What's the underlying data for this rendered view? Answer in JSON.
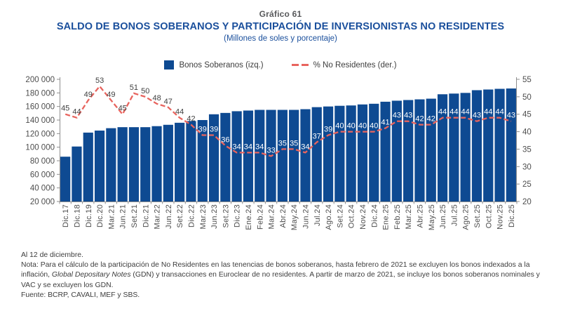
{
  "header": {
    "kicker": "Gráfico 61",
    "title": "SALDO DE BONOS SOBERANOS Y PARTICIPACIÓN DE INVERSIONISTAS NO RESIDENTES",
    "subtitle": "(Millones de soles y porcentaje)"
  },
  "legend": {
    "bars_label": "Bonos Soberanos (izq.)",
    "line_label": "% No Residentes (der.)"
  },
  "colors": {
    "title_blue": "#1A4F9C",
    "kicker_gray": "#58595B",
    "bar_blue": "#0E4A92",
    "line_red": "#E8645E",
    "label_dark": "#404040",
    "label_light": "#FFFFFF",
    "axis_gray": "#8E8E8E"
  },
  "chart_data": {
    "type": "combo",
    "title": "SALDO DE BONOS SOBERANOS Y PARTICIPACIÓN DE INVERSIONISTAS NO RESIDENTES",
    "subtitle": "(Millones de soles y porcentaje)",
    "grid": false,
    "legend_position": "top",
    "categories": [
      "Dic.17",
      "Dic.18",
      "Dic.19",
      "Dic.20",
      "Mar.21",
      "Jun.21",
      "Set.21",
      "Dic.21",
      "Mar.22",
      "Jun.22",
      "Set.22",
      "Dic.22",
      "Mar.23",
      "Jun.23",
      "Set.23",
      "Dic.23",
      "Ene.24",
      "Feb.24",
      "Mar.24",
      "Abr.24",
      "May.24",
      "Jun.24",
      "Jul.24",
      "Ago.24",
      "Set.24",
      "Oct.24",
      "Nov.24",
      "Dic.24",
      "Ene.25",
      "Feb.25",
      "Mar.25",
      "Abr.25",
      "May.25",
      "Jun.25",
      "Jul.25",
      "Ago.25",
      "Set.25",
      "Oct.25",
      "Nov.25",
      "Dic.25"
    ],
    "series": [
      {
        "name": "Bonos Soberanos (izq.)",
        "chart_type": "bar",
        "axis": "left",
        "values_estimated": true,
        "values": [
          86000,
          101000,
          121500,
          124500,
          128000,
          129500,
          129500,
          129500,
          131000,
          133000,
          136000,
          138500,
          140000,
          148500,
          150500,
          153000,
          154000,
          155000,
          155000,
          155000,
          155000,
          156000,
          159000,
          160000,
          161000,
          161500,
          163000,
          164000,
          167000,
          168500,
          169500,
          170500,
          171500,
          178000,
          179000,
          180000,
          184000,
          185000,
          186000,
          186500
        ]
      },
      {
        "name": "% No Residentes (der.)",
        "chart_type": "line",
        "axis": "right",
        "values": [
          45,
          44,
          49,
          53,
          49,
          45,
          51,
          50,
          48,
          47,
          44,
          42,
          39,
          39,
          36,
          34,
          34,
          34,
          33,
          35,
          35,
          34,
          37,
          39,
          40,
          40,
          40,
          40,
          41,
          43,
          43,
          42,
          42,
          44,
          44,
          44,
          43,
          44,
          44,
          43
        ],
        "label_style_switch_index": 12
      }
    ],
    "left_axis": {
      "min": 20000,
      "max": 200000,
      "step": 20000,
      "tick_labels": [
        "200 000",
        "180 000",
        "160 000",
        "140 000",
        "120 000",
        "100 000",
        "80 000",
        "60 000",
        "40 000",
        "20 000"
      ]
    },
    "right_axis": {
      "min": 20,
      "max": 55,
      "step": 5,
      "tick_labels": [
        "55",
        "50",
        "45",
        "40",
        "35",
        "30",
        "25",
        "20"
      ]
    }
  },
  "footer": {
    "asof": "Al 12 de diciembre.",
    "note_before_italic": "Nota: Para el cálculo de la participación de No Residentes en las tenencias de bonos soberanos, hasta febrero de 2021 se excluyen los bonos indexados a la inflación, ",
    "note_italic": "Global Depositary Notes",
    "note_after_italic": " (GDN) y transacciones en Euroclear de no residentes. A partir de marzo de 2021, se incluye los bonos soberanos nominales y VAC y se excluyen los GDN.",
    "source": "Fuente: BCRP, CAVALI, MEF y SBS."
  }
}
